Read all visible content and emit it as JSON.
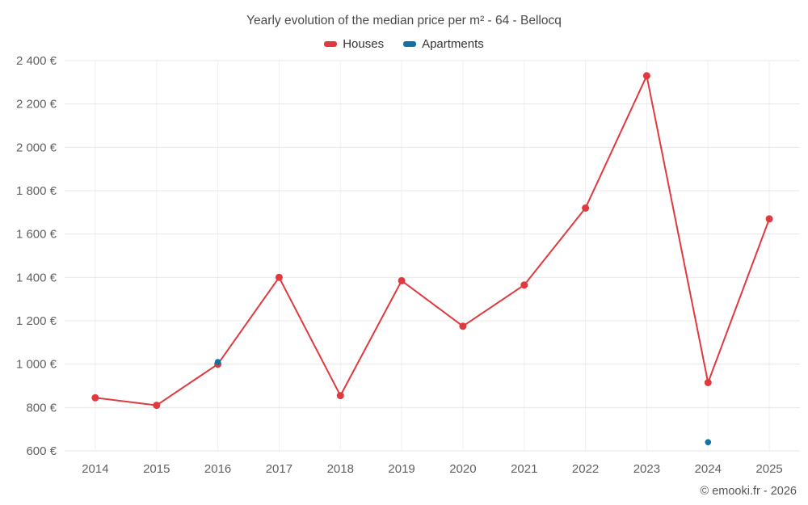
{
  "title": "Yearly evolution of the median price per m² - 64 - Bellocq",
  "legend": [
    {
      "label": "Houses",
      "color": "#e0393e"
    },
    {
      "label": "Apartments",
      "color": "#1272a2"
    }
  ],
  "footer": "© emooki.fr - 2026",
  "chart_data": {
    "type": "line",
    "x": [
      "2014",
      "2015",
      "2016",
      "2017",
      "2018",
      "2019",
      "2020",
      "2021",
      "2022",
      "2023",
      "2024",
      "2025"
    ],
    "series": [
      {
        "name": "Houses",
        "color": "#e0393e",
        "marker_radius": 4.5,
        "values": [
          845,
          810,
          1000,
          1400,
          855,
          1385,
          1175,
          1365,
          1720,
          2330,
          915,
          1670
        ]
      },
      {
        "name": "Apartments",
        "color": "#1272a2",
        "marker_radius": 3.8,
        "values": [
          null,
          null,
          1010,
          null,
          null,
          null,
          null,
          null,
          null,
          null,
          640,
          null
        ]
      }
    ],
    "title": "Yearly evolution of the median price per m² - 64 - Bellocq",
    "xlabel": "",
    "ylabel": "",
    "ylim": [
      600,
      2400
    ],
    "ytick_step": 200,
    "ytick_labels": [
      "600 €",
      "800 €",
      "1 000 €",
      "1 200 €",
      "1 400 €",
      "1 600 €",
      "1 800 €",
      "2 000 €",
      "2 200 €",
      "2 400 €"
    ],
    "grid": true,
    "legend_position": "top"
  }
}
